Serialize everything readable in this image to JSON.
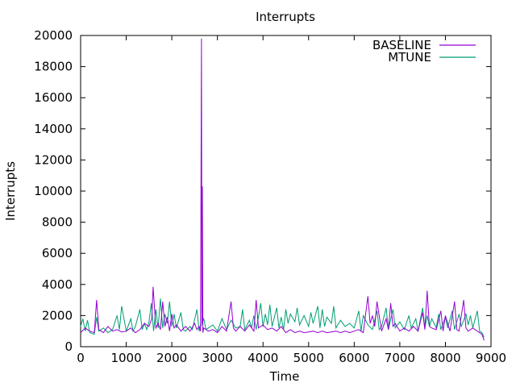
{
  "chart_data": {
    "type": "line",
    "title": "Interrupts",
    "xlabel": "Time",
    "ylabel": "Interrupts",
    "xlim": [
      0,
      9000
    ],
    "ylim": [
      0,
      20000
    ],
    "xticks": [
      0,
      1000,
      2000,
      3000,
      4000,
      5000,
      6000,
      7000,
      8000,
      9000
    ],
    "yticks": [
      0,
      2000,
      4000,
      6000,
      8000,
      10000,
      12000,
      14000,
      16000,
      18000,
      20000
    ],
    "grid": false,
    "legend_position": "top-right",
    "series": [
      {
        "name": "BASELINE",
        "color": "#9400d3",
        "points": [
          [
            0,
            900
          ],
          [
            100,
            1200
          ],
          [
            200,
            1000
          ],
          [
            300,
            900
          ],
          [
            350,
            3000
          ],
          [
            400,
            1100
          ],
          [
            500,
            900
          ],
          [
            600,
            1300
          ],
          [
            700,
            1000
          ],
          [
            800,
            1100
          ],
          [
            900,
            950
          ],
          [
            1000,
            1000
          ],
          [
            1100,
            1200
          ],
          [
            1200,
            900
          ],
          [
            1300,
            1100
          ],
          [
            1400,
            1500
          ],
          [
            1500,
            1300
          ],
          [
            1560,
            1800
          ],
          [
            1590,
            3850
          ],
          [
            1650,
            1200
          ],
          [
            1700,
            1500
          ],
          [
            1750,
            1100
          ],
          [
            1800,
            2900
          ],
          [
            1850,
            1300
          ],
          [
            1900,
            1900
          ],
          [
            1950,
            1000
          ],
          [
            2000,
            2100
          ],
          [
            2050,
            1200
          ],
          [
            2100,
            1400
          ],
          [
            2200,
            1000
          ],
          [
            2300,
            1300
          ],
          [
            2400,
            1000
          ],
          [
            2500,
            1500
          ],
          [
            2550,
            1100
          ],
          [
            2600,
            1300
          ],
          [
            2630,
            1000
          ],
          [
            2650,
            19800
          ],
          [
            2660,
            1500
          ],
          [
            2670,
            10300
          ],
          [
            2680,
            900
          ],
          [
            2700,
            1200
          ],
          [
            2800,
            1000
          ],
          [
            2900,
            1100
          ],
          [
            3000,
            900
          ],
          [
            3100,
            1300
          ],
          [
            3200,
            1000
          ],
          [
            3300,
            2900
          ],
          [
            3350,
            1200
          ],
          [
            3400,
            1000
          ],
          [
            3500,
            1300
          ],
          [
            3600,
            1000
          ],
          [
            3700,
            1400
          ],
          [
            3800,
            1000
          ],
          [
            3850,
            3000
          ],
          [
            3900,
            1200
          ],
          [
            4000,
            1400
          ],
          [
            4100,
            1100
          ],
          [
            4200,
            1200
          ],
          [
            4300,
            1000
          ],
          [
            4400,
            1300
          ],
          [
            4500,
            900
          ],
          [
            4600,
            1100
          ],
          [
            4700,
            900
          ],
          [
            4800,
            1000
          ],
          [
            4900,
            900
          ],
          [
            5000,
            950
          ],
          [
            5100,
            1000
          ],
          [
            5200,
            900
          ],
          [
            5300,
            1000
          ],
          [
            5400,
            900
          ],
          [
            5500,
            950
          ],
          [
            5600,
            1000
          ],
          [
            5700,
            900
          ],
          [
            5800,
            1000
          ],
          [
            5900,
            900
          ],
          [
            6000,
            1000
          ],
          [
            6100,
            1100
          ],
          [
            6200,
            900
          ],
          [
            6300,
            3250
          ],
          [
            6350,
            1500
          ],
          [
            6400,
            2000
          ],
          [
            6450,
            1300
          ],
          [
            6500,
            2900
          ],
          [
            6600,
            1000
          ],
          [
            6700,
            1800
          ],
          [
            6750,
            1100
          ],
          [
            6800,
            2800
          ],
          [
            6850,
            1300
          ],
          [
            6900,
            1500
          ],
          [
            7000,
            1000
          ],
          [
            7100,
            1200
          ],
          [
            7200,
            1000
          ],
          [
            7300,
            1300
          ],
          [
            7400,
            1000
          ],
          [
            7500,
            2200
          ],
          [
            7550,
            1100
          ],
          [
            7600,
            3600
          ],
          [
            7650,
            1300
          ],
          [
            7700,
            1200
          ],
          [
            7800,
            1100
          ],
          [
            7900,
            2300
          ],
          [
            7950,
            1000
          ],
          [
            8000,
            2000
          ],
          [
            8100,
            1000
          ],
          [
            8200,
            2900
          ],
          [
            8250,
            1100
          ],
          [
            8300,
            1000
          ],
          [
            8400,
            3000
          ],
          [
            8450,
            1200
          ],
          [
            8500,
            1000
          ],
          [
            8600,
            1200
          ],
          [
            8700,
            1000
          ],
          [
            8800,
            800
          ],
          [
            8850,
            400
          ]
        ]
      },
      {
        "name": "MTUNE",
        "color": "#009e73",
        "points": [
          [
            0,
            1300
          ],
          [
            50,
            1800
          ],
          [
            100,
            1000
          ],
          [
            150,
            1700
          ],
          [
            200,
            900
          ],
          [
            300,
            800
          ],
          [
            350,
            1900
          ],
          [
            400,
            1000
          ],
          [
            500,
            1200
          ],
          [
            600,
            900
          ],
          [
            700,
            1100
          ],
          [
            800,
            2000
          ],
          [
            850,
            1100
          ],
          [
            900,
            2600
          ],
          [
            1000,
            1000
          ],
          [
            1100,
            1800
          ],
          [
            1150,
            1000
          ],
          [
            1200,
            1300
          ],
          [
            1300,
            2400
          ],
          [
            1350,
            1100
          ],
          [
            1400,
            1500
          ],
          [
            1450,
            1100
          ],
          [
            1500,
            1600
          ],
          [
            1550,
            2800
          ],
          [
            1600,
            1000
          ],
          [
            1650,
            2400
          ],
          [
            1700,
            1200
          ],
          [
            1750,
            3100
          ],
          [
            1800,
            1200
          ],
          [
            1850,
            2100
          ],
          [
            1900,
            1500
          ],
          [
            1950,
            2900
          ],
          [
            2000,
            1300
          ],
          [
            2050,
            2100
          ],
          [
            2100,
            1200
          ],
          [
            2200,
            2200
          ],
          [
            2250,
            1100
          ],
          [
            2300,
            1000
          ],
          [
            2400,
            1300
          ],
          [
            2450,
            1100
          ],
          [
            2550,
            2400
          ],
          [
            2600,
            1000
          ],
          [
            2700,
            1800
          ],
          [
            2750,
            1100
          ],
          [
            2800,
            1200
          ],
          [
            2900,
            1400
          ],
          [
            3000,
            1000
          ],
          [
            3100,
            1800
          ],
          [
            3200,
            1100
          ],
          [
            3300,
            1700
          ],
          [
            3400,
            1200
          ],
          [
            3500,
            1300
          ],
          [
            3550,
            2400
          ],
          [
            3600,
            1100
          ],
          [
            3700,
            1700
          ],
          [
            3750,
            1200
          ],
          [
            3800,
            2000
          ],
          [
            3850,
            1100
          ],
          [
            3900,
            1900
          ],
          [
            3950,
            2800
          ],
          [
            4000,
            1300
          ],
          [
            4050,
            2100
          ],
          [
            4100,
            1400
          ],
          [
            4150,
            2700
          ],
          [
            4200,
            1300
          ],
          [
            4300,
            2500
          ],
          [
            4350,
            1200
          ],
          [
            4400,
            1900
          ],
          [
            4450,
            1100
          ],
          [
            4500,
            2400
          ],
          [
            4550,
            1500
          ],
          [
            4600,
            2100
          ],
          [
            4700,
            1600
          ],
          [
            4750,
            2500
          ],
          [
            4800,
            1400
          ],
          [
            4900,
            2000
          ],
          [
            5000,
            1300
          ],
          [
            5050,
            2200
          ],
          [
            5100,
            1500
          ],
          [
            5200,
            2600
          ],
          [
            5250,
            1200
          ],
          [
            5300,
            2400
          ],
          [
            5350,
            1300
          ],
          [
            5400,
            1900
          ],
          [
            5500,
            1500
          ],
          [
            5550,
            2600
          ],
          [
            5600,
            1200
          ],
          [
            5700,
            1700
          ],
          [
            5800,
            1300
          ],
          [
            5900,
            1500
          ],
          [
            6000,
            1200
          ],
          [
            6100,
            2300
          ],
          [
            6150,
            1000
          ],
          [
            6200,
            2000
          ],
          [
            6300,
            1400
          ],
          [
            6400,
            1100
          ],
          [
            6500,
            2300
          ],
          [
            6550,
            1100
          ],
          [
            6600,
            1300
          ],
          [
            6700,
            2500
          ],
          [
            6750,
            1100
          ],
          [
            6850,
            2400
          ],
          [
            6900,
            1200
          ],
          [
            7000,
            1600
          ],
          [
            7100,
            1100
          ],
          [
            7200,
            2000
          ],
          [
            7250,
            1200
          ],
          [
            7350,
            1800
          ],
          [
            7400,
            1000
          ],
          [
            7500,
            2500
          ],
          [
            7550,
            1200
          ],
          [
            7600,
            2000
          ],
          [
            7650,
            1300
          ],
          [
            7700,
            1800
          ],
          [
            7800,
            1200
          ],
          [
            7850,
            2100
          ],
          [
            7900,
            1100
          ],
          [
            8000,
            1900
          ],
          [
            8050,
            1200
          ],
          [
            8150,
            2300
          ],
          [
            8200,
            1100
          ],
          [
            8300,
            2100
          ],
          [
            8350,
            1300
          ],
          [
            8450,
            2100
          ],
          [
            8500,
            1400
          ],
          [
            8550,
            2000
          ],
          [
            8600,
            1200
          ],
          [
            8700,
            2300
          ],
          [
            8750,
            1000
          ],
          [
            8800,
            900
          ],
          [
            8850,
            600
          ]
        ]
      }
    ]
  }
}
